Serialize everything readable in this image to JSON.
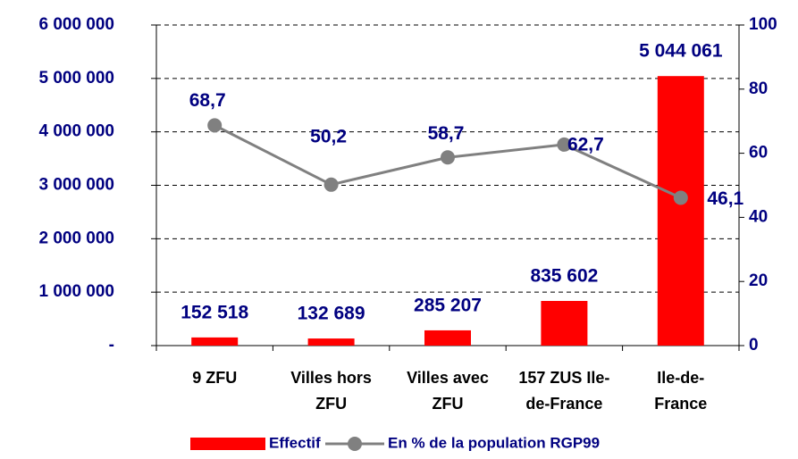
{
  "chart_data": {
    "type": "bar-line",
    "categories": [
      [
        "9 ZFU"
      ],
      [
        "Villes hors",
        "ZFU"
      ],
      [
        "Villes avec",
        "ZFU"
      ],
      [
        "157 ZUS Ile-",
        "de-France"
      ],
      [
        "Ile-de-",
        "France"
      ]
    ],
    "series": [
      {
        "name": "Effectif",
        "type": "bar",
        "color": "#ff0000",
        "axis": "y",
        "values": [
          152518,
          132689,
          285207,
          835602,
          5044061
        ],
        "value_labels": [
          "152 518",
          "132 689",
          "285 207",
          "835 602",
          "5 044 061"
        ]
      },
      {
        "name": "En % de la population RGP99",
        "type": "line",
        "color": "#808080",
        "axis": "y2",
        "values": [
          68.7,
          50.2,
          58.7,
          62.7,
          46.1
        ],
        "value_labels": [
          "68,7",
          "50,2",
          "58,7",
          "62,7",
          "46,1"
        ]
      }
    ],
    "ylim": [
      0,
      6000000
    ],
    "yticks": [
      {
        "value": 0,
        "label": "-"
      },
      {
        "value": 1000000,
        "label": "1 000 000"
      },
      {
        "value": 2000000,
        "label": "2 000 000"
      },
      {
        "value": 3000000,
        "label": "3 000 000"
      },
      {
        "value": 4000000,
        "label": "4 000 000"
      },
      {
        "value": 5000000,
        "label": "5 000 000"
      },
      {
        "value": 6000000,
        "label": "6 000 000"
      }
    ],
    "y2lim": [
      0,
      100
    ],
    "y2ticks": [
      0,
      20,
      40,
      60,
      80,
      100
    ],
    "grid": true
  }
}
